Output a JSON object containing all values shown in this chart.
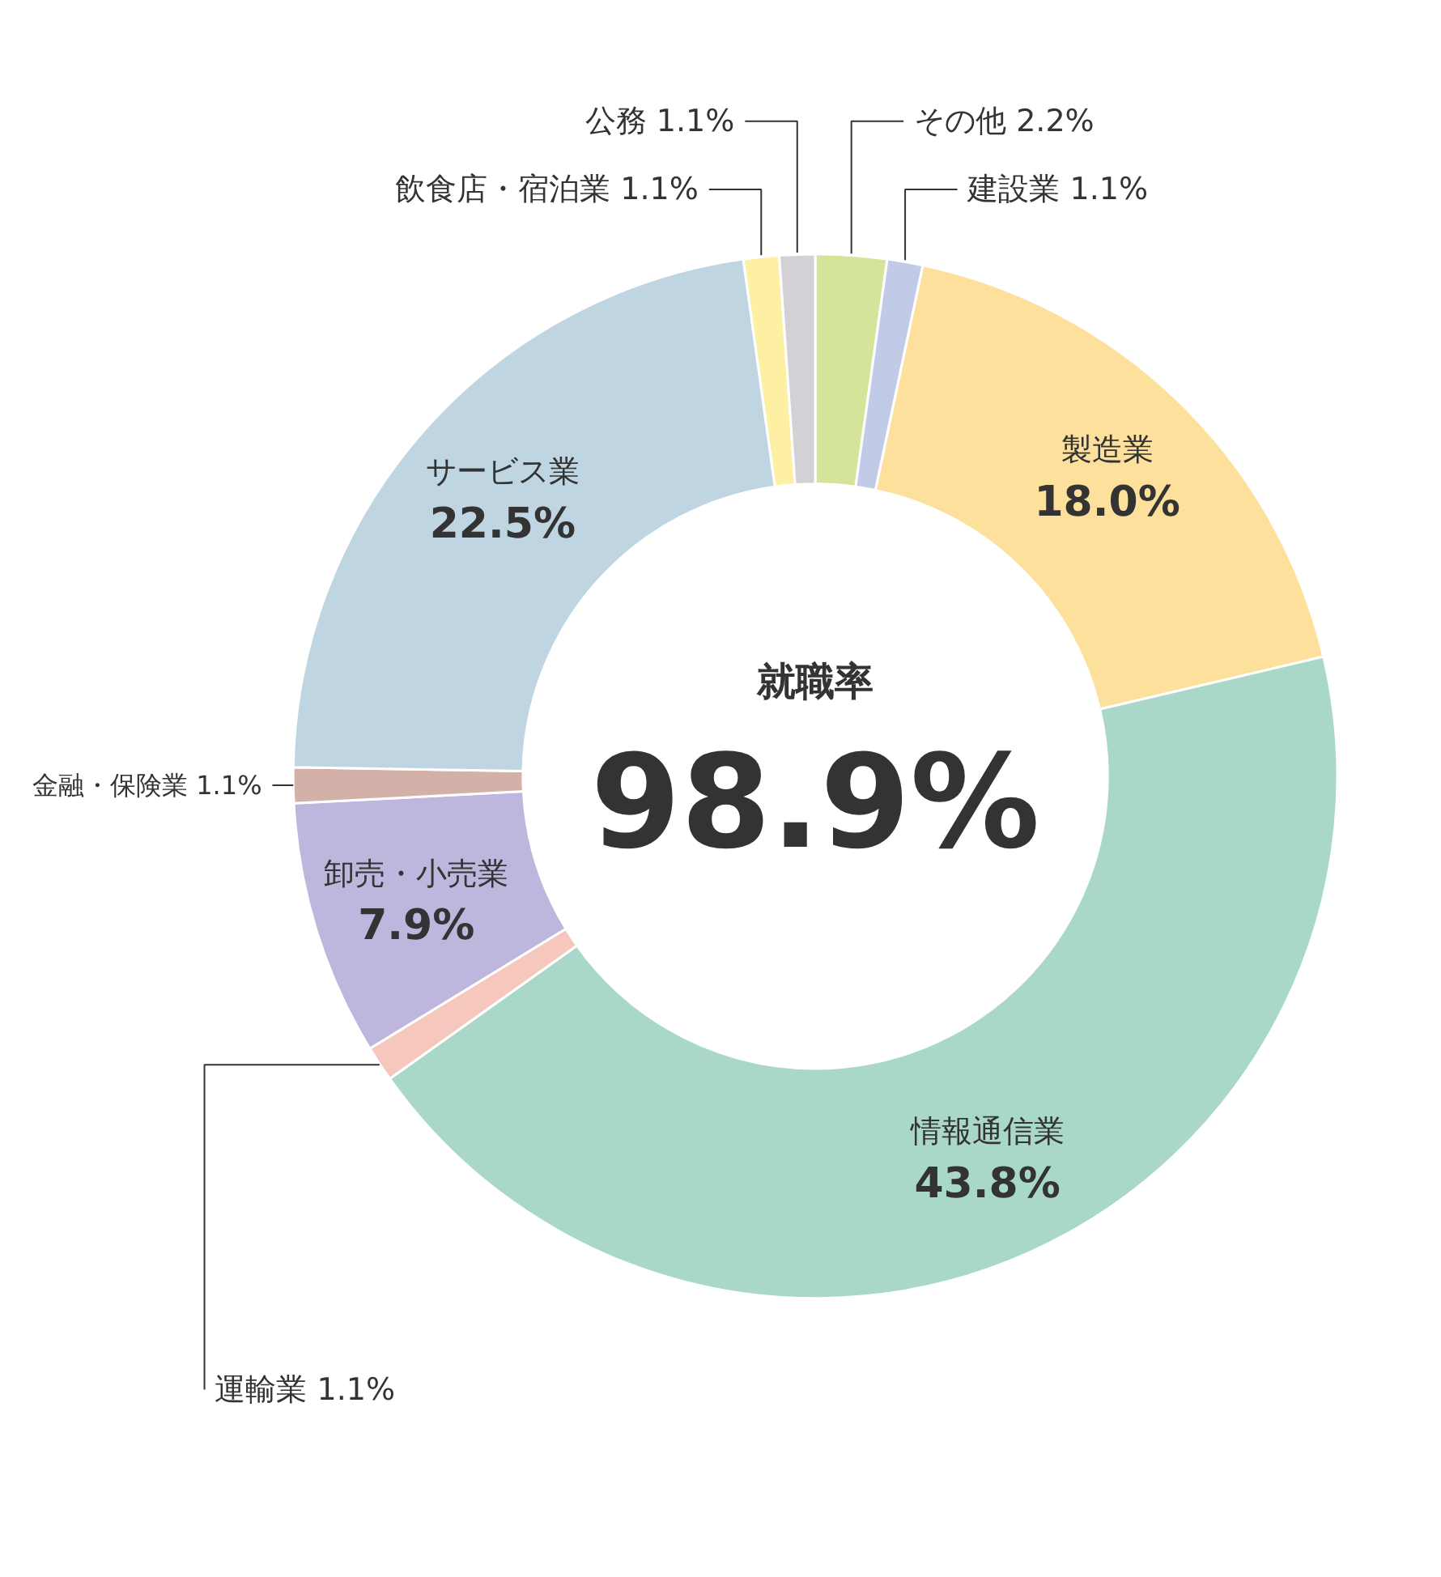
{
  "chart_data": {
    "type": "donut",
    "title": "就職率",
    "annotations": [
      "98.9%"
    ],
    "categories": [
      "その他",
      "建設業",
      "製造業",
      "情報通信業",
      "運輸業",
      "卸売・小売業",
      "金融・保険業",
      "サービス業",
      "飲食店・宿泊業",
      "公務"
    ],
    "values": [
      2.2,
      1.1,
      18.0,
      43.8,
      1.1,
      7.9,
      1.1,
      22.5,
      1.1,
      1.1
    ],
    "colors": [
      "#d4e59b",
      "#c1cbe8",
      "#fde09c",
      "#a9d8c9",
      "#f6c7bd",
      "#beb6dc",
      "#d4b1a8",
      "#bfd5e1",
      "#fdf0a2",
      "#d4d1d6"
    ],
    "value_labels": [
      "2.2%",
      "1.1%",
      "18.0%",
      "43.8%",
      "1.1%",
      "7.9%",
      "1.1%",
      "22.5%",
      "1.1%",
      "1.1%"
    ]
  }
}
